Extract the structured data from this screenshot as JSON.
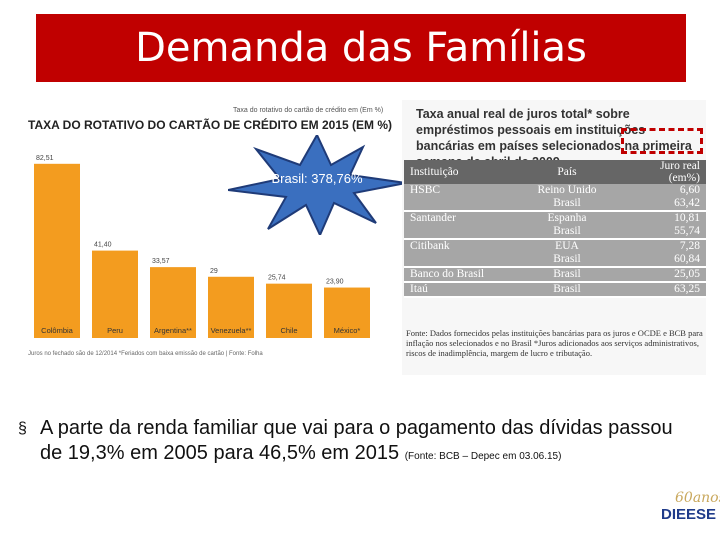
{
  "slide": {
    "title": "Demanda das Famílias"
  },
  "left_chart": {
    "small_caption": "Taxa do rotativo do cartão de crédito em (Em %)",
    "title": "TAXA DO ROTATIVO DO CARTÃO DE CRÉDITO EM 2015 (EM %)",
    "footnote": "Juros no fechado são de 12/2014 *Feriados com baixa emissão de cartão | Fonte: Folha",
    "bar_color": "#f39c1f"
  },
  "chart_data": {
    "type": "bar",
    "title": "TAXA DO ROTATIVO DO CARTÃO DE CRÉDITO EM 2015 (EM %)",
    "categories": [
      "Colômbia",
      "Peru",
      "Argentina**",
      "Venezuela**",
      "Chile",
      "México*"
    ],
    "values": [
      82.51,
      41.4,
      33.57,
      29,
      25.74,
      23.9
    ],
    "value_labels": [
      "82,51",
      "41,40",
      "33,57",
      "29",
      "25,74",
      "23,90"
    ],
    "ylim": [
      0,
      90
    ],
    "grid": false,
    "legend": "none"
  },
  "callout": {
    "text": "Brasil: 378,76%"
  },
  "right_table": {
    "title": "Taxa anual real de juros total* sobre empréstimos pessoais em instituições bancárias em países selecionados na primeira semana de abril de 2009",
    "headers": [
      "Instituição",
      "País",
      "Juro real (em%)"
    ],
    "groups": [
      {
        "institution": "HSBC",
        "rows": [
          [
            "Reino Unido",
            "6,60"
          ],
          [
            "Brasil",
            "63,42"
          ]
        ]
      },
      {
        "institution": "Santander",
        "rows": [
          [
            "Espanha",
            "10,81"
          ],
          [
            "Brasil",
            "55,74"
          ]
        ]
      },
      {
        "institution": "Citibank",
        "rows": [
          [
            "EUA",
            "7,28"
          ],
          [
            "Brasil",
            "60,84"
          ]
        ]
      },
      {
        "institution": "Banco do Brasil",
        "rows": [
          [
            "Brasil",
            "25,05"
          ]
        ]
      },
      {
        "institution": "Itaú",
        "rows": [
          [
            "Brasil",
            "63,25"
          ]
        ]
      }
    ],
    "source": "Fonte: Dados fornecidos pelas instituições bancárias para os juros e OCDE e BCB para inflação nos selecionados e no Brasil *Juros adicionados aos serviços administrativos, riscos de inadimplência, margem de lucro e tributação.",
    "row_color": "#a6a6a6",
    "header_color": "#666666"
  },
  "bullet": {
    "text": "A parte da renda familiar que vai para o pagamento das dívidas passou de 19,3% em 2005 para 46,5% em 2015",
    "source": "(Fonte: BCB – Depec em 03.06.15)"
  },
  "logo": {
    "script": "60anos",
    "word": "DIEESE"
  }
}
